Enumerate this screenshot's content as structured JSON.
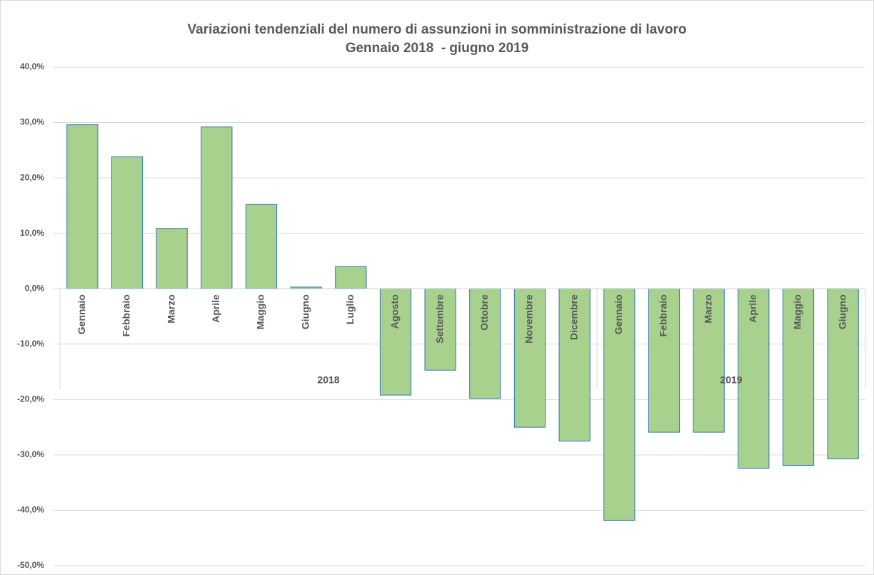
{
  "chart_data": {
    "type": "bar",
    "title": "Variazioni tendenziali del numero di assunzioni in somministrazione di lavoro",
    "subtitle": "Gennaio 2018  - giugno 2019",
    "groups": [
      {
        "name": "2018",
        "categories": [
          "Gennaio",
          "Febbraio",
          "Marzo",
          "Aprile",
          "Maggio",
          "Giugno",
          "Luglio",
          "Agosto",
          "Settembre",
          "Ottobre",
          "Novembre",
          "Dicembre"
        ]
      },
      {
        "name": "2019",
        "categories": [
          "Gennaio",
          "Febbraio",
          "Marzo",
          "Aprile",
          "Maggio",
          "Giugno"
        ]
      }
    ],
    "values": [
      29.6,
      23.8,
      10.9,
      29.2,
      15.2,
      0.3,
      4.0,
      -19.2,
      -14.7,
      -19.8,
      -25.0,
      -27.5,
      -41.8,
      -25.9,
      -25.9,
      -32.4,
      -31.9,
      -30.7
    ],
    "color": "#a9d18e",
    "edge_color": "#2e75b6",
    "ylim": [
      -50,
      40
    ],
    "yticks": [
      {
        "value": -50,
        "label": "-50,0%"
      },
      {
        "value": -40,
        "label": "-40,0%"
      },
      {
        "value": -30,
        "label": "-30,0%"
      },
      {
        "value": -20,
        "label": "-20,0%"
      },
      {
        "value": -10,
        "label": "-10,0%"
      },
      {
        "value": 0,
        "label": "0,0%"
      },
      {
        "value": 10,
        "label": "10,0%"
      },
      {
        "value": 20,
        "label": "20,0%"
      },
      {
        "value": 30,
        "label": "30,0%"
      },
      {
        "value": 40,
        "label": "40,0%"
      }
    ],
    "grid": true
  }
}
